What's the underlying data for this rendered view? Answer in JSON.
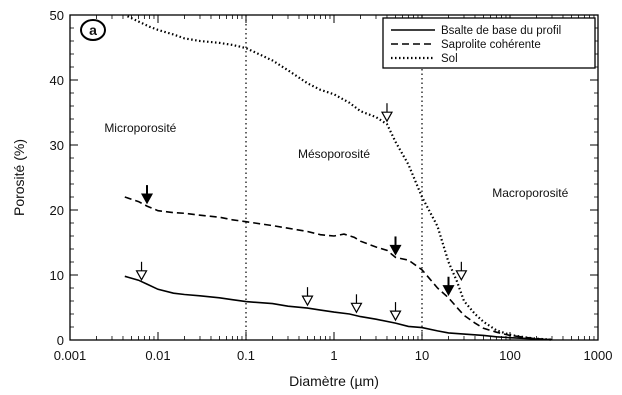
{
  "chart_data": {
    "type": "line",
    "panel_label": "a",
    "xlabel": "Diamètre (µm)",
    "ylabel": "Porosité (%)",
    "x_scale": "log",
    "xlim": [
      0.001,
      1000
    ],
    "ylim": [
      0,
      50
    ],
    "x_ticks": [
      0.001,
      0.01,
      0.1,
      1,
      10,
      100,
      1000
    ],
    "x_tick_labels": [
      "0.001",
      "0.01",
      "0.1",
      "1",
      "10",
      "100",
      "1000"
    ],
    "y_ticks": [
      0,
      10,
      20,
      30,
      40,
      50
    ],
    "y_tick_labels": [
      "0",
      "10",
      "20",
      "30",
      "40",
      "50"
    ],
    "grid": false,
    "legend_position": "top-right",
    "region_boundaries": [
      0.1,
      10
    ],
    "region_labels": [
      {
        "text": "Microporosité",
        "x": 0.0063,
        "y": 32
      },
      {
        "text": "Mésoporosité",
        "x": 1.0,
        "y": 28
      },
      {
        "text": "Macroporosité",
        "x": 170,
        "y": 22
      }
    ],
    "series": [
      {
        "name": "Bsalte de base du profil",
        "style": "solid",
        "x": [
          0.0042,
          0.006,
          0.0075,
          0.01,
          0.015,
          0.02,
          0.03,
          0.05,
          0.07,
          0.1,
          0.2,
          0.3,
          0.5,
          0.7,
          1,
          1.5,
          2,
          3,
          5,
          7,
          10,
          15,
          20,
          30,
          50,
          70,
          100,
          150,
          200,
          300
        ],
        "y": [
          9.8,
          9.2,
          8.6,
          7.8,
          7.2,
          7.0,
          6.8,
          6.5,
          6.2,
          5.9,
          5.6,
          5.2,
          4.9,
          4.6,
          4.3,
          4.0,
          3.6,
          3.2,
          2.6,
          2.1,
          1.9,
          1.4,
          1.1,
          0.9,
          0.7,
          0.5,
          0.35,
          0.25,
          0.15,
          0.05
        ]
      },
      {
        "name": "Saprolite cohérente",
        "style": "dashed",
        "x": [
          0.0042,
          0.006,
          0.0075,
          0.01,
          0.015,
          0.02,
          0.03,
          0.05,
          0.07,
          0.1,
          0.2,
          0.3,
          0.5,
          0.7,
          1,
          1.3,
          1.7,
          2,
          3,
          4,
          5,
          7,
          10,
          13,
          15,
          20,
          25,
          30,
          40,
          50,
          70,
          100,
          150,
          200,
          300
        ],
        "y": [
          22.0,
          21.3,
          20.6,
          19.9,
          19.6,
          19.5,
          19.2,
          18.9,
          18.5,
          18.2,
          17.6,
          17.2,
          16.7,
          16.2,
          16.0,
          16.3,
          15.8,
          15.2,
          14.3,
          13.8,
          12.7,
          12.3,
          10.8,
          9.0,
          8.0,
          6.5,
          5.0,
          3.8,
          2.6,
          1.8,
          1.2,
          0.7,
          0.4,
          0.2,
          0.05
        ]
      },
      {
        "name": "Sol",
        "style": "dotted",
        "x": [
          0.0045,
          0.006,
          0.008,
          0.01,
          0.015,
          0.02,
          0.03,
          0.05,
          0.07,
          0.1,
          0.2,
          0.3,
          0.5,
          0.7,
          1,
          1.5,
          2,
          3,
          4,
          5,
          7,
          10,
          15,
          20,
          25,
          30,
          40,
          50,
          70,
          100,
          150,
          200,
          300
        ],
        "y": [
          49.8,
          49.0,
          48.2,
          47.7,
          47.0,
          46.4,
          46.0,
          45.7,
          45.4,
          44.9,
          43.0,
          41.5,
          39.5,
          38.5,
          37.8,
          36.5,
          35.2,
          34.3,
          33.2,
          30.5,
          27.0,
          22.0,
          17.5,
          12.0,
          9.0,
          6.0,
          4.0,
          2.8,
          1.5,
          0.8,
          0.4,
          0.2,
          0.05
        ]
      }
    ],
    "annotations": [
      {
        "type": "arrow",
        "style": "filled",
        "x": 0.0075,
        "y": 20.6
      },
      {
        "type": "arrow",
        "style": "filled",
        "x": 5,
        "y": 12.7
      },
      {
        "type": "arrow",
        "style": "filled",
        "x": 20,
        "y": 6.5
      },
      {
        "type": "arrow",
        "style": "open",
        "x": 0.0065,
        "y": 8.8
      },
      {
        "type": "arrow",
        "style": "open",
        "x": 0.5,
        "y": 4.9
      },
      {
        "type": "arrow",
        "style": "open",
        "x": 1.8,
        "y": 3.8
      },
      {
        "type": "arrow",
        "style": "open",
        "x": 5,
        "y": 2.6
      },
      {
        "type": "arrow",
        "style": "open",
        "x": 4,
        "y": 33.2
      },
      {
        "type": "arrow",
        "style": "open",
        "x": 28,
        "y": 8.8
      }
    ]
  }
}
